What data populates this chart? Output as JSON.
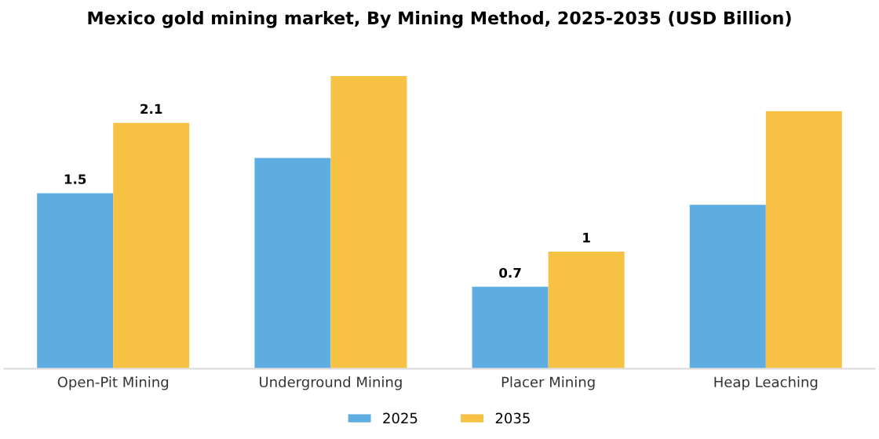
{
  "chart_data": {
    "type": "bar",
    "title": "Mexico gold mining market, By Mining Method, 2025-2035 (USD Billion)",
    "categories": [
      "Open-Pit Mining",
      "Underground Mining",
      "Placer Mining",
      "Heap Leaching"
    ],
    "series": [
      {
        "name": "2025",
        "color": "#5dade2",
        "values": [
          1.5,
          1.8,
          0.7,
          1.4
        ],
        "value_labels": [
          "1.5",
          null,
          "0.7",
          null
        ]
      },
      {
        "name": "2035",
        "color": "#f7c244",
        "values": [
          2.1,
          2.5,
          1.0,
          2.2
        ],
        "value_labels": [
          "2.1",
          null,
          "1",
          null
        ]
      }
    ],
    "tick_labels": "x",
    "grid": false,
    "legend": "bottom"
  }
}
